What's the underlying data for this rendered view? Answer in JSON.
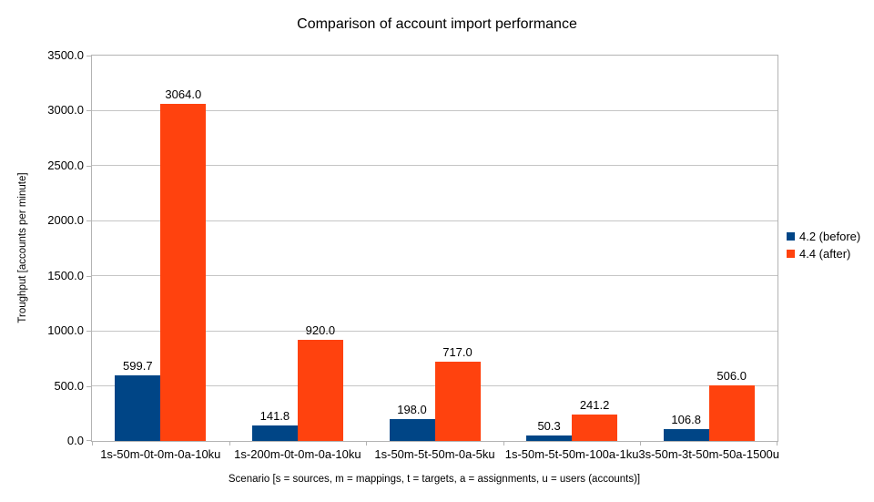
{
  "title": "Comparison of account import performance",
  "colors": {
    "series_before": "#004586",
    "series_after": "#FF420E",
    "axis_line": "#b3b3b3",
    "gridline": "#c5c5c5",
    "text": "#000000",
    "background": "#ffffff"
  },
  "chart_data": {
    "type": "bar",
    "title": "Comparison of account import performance",
    "xlabel": "Scenario [s = sources, m = mappings, t = targets, a = assignments, u = users (accounts)]",
    "ylabel": "Troughput [accounts per minute]",
    "ylim": [
      0,
      3500
    ],
    "ytick_step": 500,
    "ytick_decimals": 1,
    "grid": true,
    "data_labels": true,
    "legend_position": "right",
    "categories": [
      "1s-50m-0t-0m-0a-10ku",
      "1s-200m-0t-0m-0a-10ku",
      "1s-50m-5t-50m-0a-5ku",
      "1s-50m-5t-50m-100a-1ku",
      "3s-50m-3t-50m-50a-1500u"
    ],
    "series": [
      {
        "name": "4.2 (before)",
        "color": "#004586",
        "values": [
          599.7,
          141.8,
          198.0,
          50.3,
          106.8
        ]
      },
      {
        "name": "4.4 (after)",
        "color": "#FF420E",
        "values": [
          3064.0,
          920.0,
          717.0,
          241.2,
          506.0
        ]
      }
    ]
  }
}
